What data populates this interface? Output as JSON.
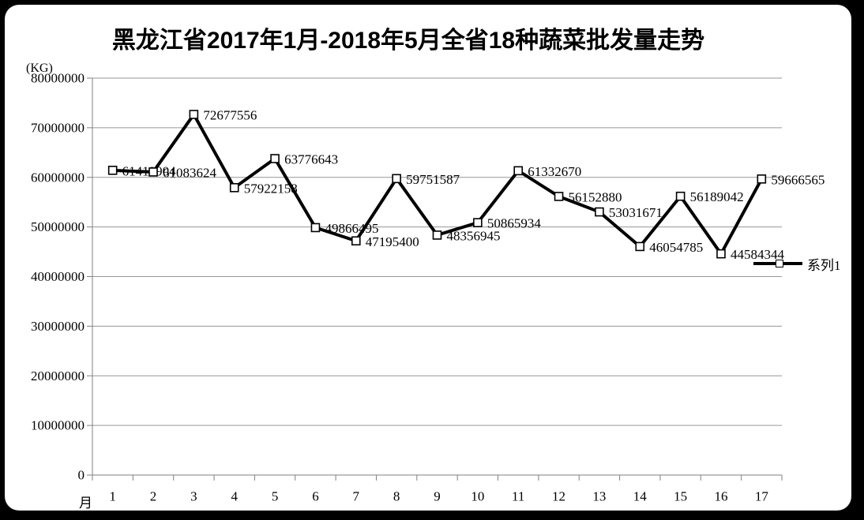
{
  "title": "黑龙江省2017年1月-2018年5月全省18种蔬菜批发量走势",
  "unit_label": "(KG)",
  "x_axis_title": "月",
  "legend": {
    "series1_label": "系列1"
  },
  "colors": {
    "line": "#000000",
    "marker_fill": "#ffffff",
    "marker_stroke": "#000000",
    "gridline": "#969696",
    "axis": "#808080",
    "text": "#000000",
    "background": "#ffffff",
    "frame": "#000000"
  },
  "chart_data": {
    "type": "line",
    "title": "黑龙江省2017年1月-2018年5月全省18种蔬菜批发量走势",
    "unit_label": "(KG)",
    "xlabel": "月",
    "ylabel": "",
    "categories": [
      "1",
      "2",
      "3",
      "4",
      "5",
      "6",
      "7",
      "8",
      "9",
      "10",
      "11",
      "12",
      "13",
      "14",
      "15",
      "16",
      "17"
    ],
    "series": [
      {
        "name": "系列1",
        "values": [
          61419904,
          61083624,
          72677556,
          57922158,
          63776643,
          49866495,
          47195400,
          59751587,
          48356945,
          50865934,
          61332670,
          56152880,
          53031671,
          46054785,
          56189042,
          44584344,
          59666565
        ]
      }
    ],
    "data_labels_shown": true,
    "ylim": [
      0,
      80000000
    ],
    "ytick_step": 10000000,
    "ytick_labels": [
      "0",
      "10000000",
      "20000000",
      "30000000",
      "40000000",
      "50000000",
      "60000000",
      "70000000",
      "80000000"
    ],
    "grid": true,
    "legend_position": "right",
    "marker": "square-white"
  }
}
